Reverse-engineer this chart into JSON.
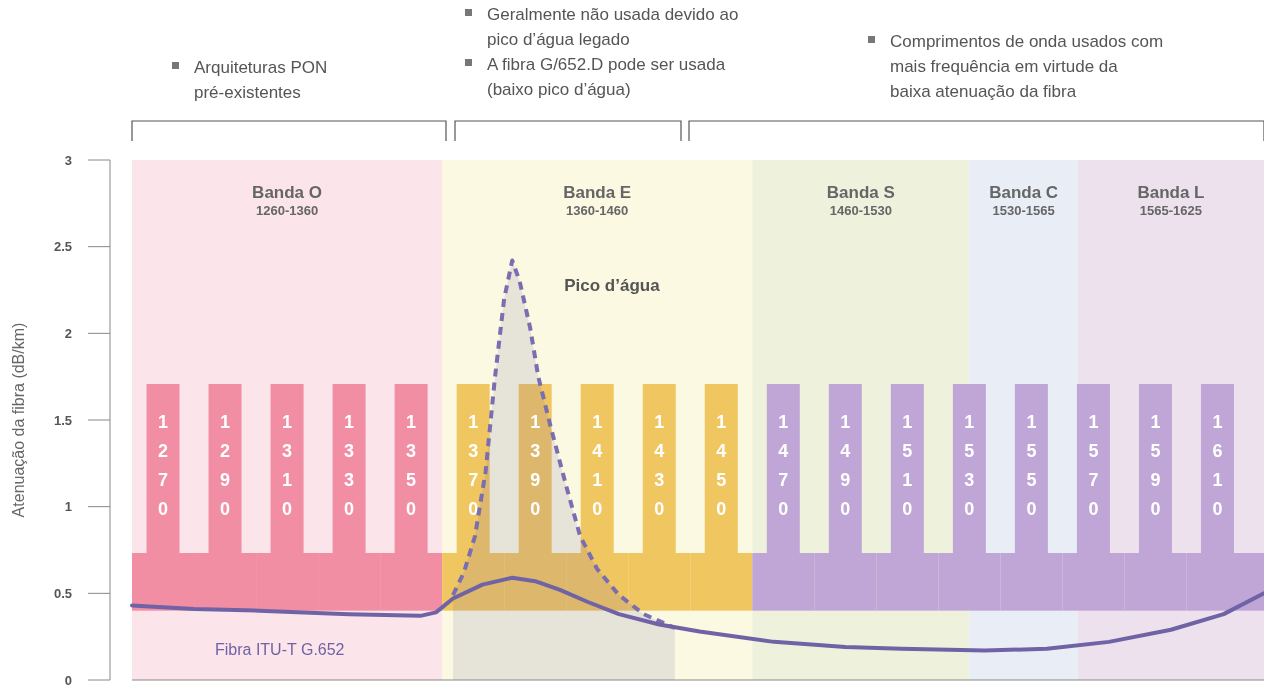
{
  "chart_data": {
    "type": "line",
    "ylabel": "Atenuação da fibra (dB/km)",
    "xlim": [
      1260,
      1625
    ],
    "ylim": [
      0,
      3
    ],
    "yticks": [
      0,
      0.5,
      1,
      1.5,
      2,
      2.5,
      3
    ],
    "xticks": [
      1270,
      1290,
      1310,
      1330,
      1350,
      1370,
      1390,
      1410,
      1430,
      1450,
      1470,
      1490,
      1510,
      1530,
      1550,
      1570,
      1590,
      1610
    ],
    "grid": false,
    "annotations": [
      "Arquiteturas PON pré-existentes",
      "Geralmente não usada devido ao pico d’água legado",
      "A fibra G/652.D pode ser usada (baixo pico d’água)",
      "Comprimentos de onda usados com mais frequência em virtude da baixa atenuação da fibra"
    ],
    "bands": [
      {
        "axis": "x",
        "from": 1260,
        "to": 1360,
        "label": "Banda O\n1260-1360",
        "color": "#fbe4ea"
      },
      {
        "axis": "x",
        "from": 1360,
        "to": 1460,
        "label": "Banda E\n1360-1460",
        "color": "#fbf9e1"
      },
      {
        "axis": "x",
        "from": 1460,
        "to": 1530,
        "label": "Banda S\n1460-1530",
        "color": "#eef2dd"
      },
      {
        "axis": "x",
        "from": 1530,
        "to": 1565,
        "label": "Banda C\n1530-1565",
        "color": "#e8edf6"
      },
      {
        "axis": "x",
        "from": 1565,
        "to": 1625,
        "label": "Banda L\n1565-1625",
        "color": "#ece1ec"
      }
    ],
    "series": [
      {
        "type": "area",
        "name": "Pico d’água",
        "color": "#7a6db0",
        "line_style": "dashed",
        "x": [
          1363.5,
          1367,
          1370.6,
          1374,
          1377,
          1380,
          1382.6,
          1385,
          1388.4,
          1391,
          1395,
          1400,
          1404.5,
          1410,
          1417,
          1425,
          1435
        ],
        "values": [
          0.49,
          0.62,
          0.83,
          1.2,
          1.74,
          2.2,
          2.42,
          2.3,
          2.03,
          1.75,
          1.46,
          1.12,
          0.83,
          0.64,
          0.49,
          0.38,
          0.3
        ]
      },
      {
        "name": "Fibra ITU-T G.652",
        "color": "#6f63a6",
        "line_style": "solid",
        "x": [
          1260,
          1280,
          1301,
          1330,
          1353,
          1358,
          1363.5,
          1373,
          1382.6,
          1390,
          1398,
          1407,
          1417,
          1430,
          1443,
          1467,
          1490,
          1508,
          1535,
          1555,
          1575,
          1595,
          1612,
          1625
        ],
        "values": [
          0.43,
          0.41,
          0.4,
          0.38,
          0.37,
          0.39,
          0.47,
          0.55,
          0.59,
          0.57,
          0.52,
          0.45,
          0.38,
          0.32,
          0.28,
          0.22,
          0.19,
          0.18,
          0.17,
          0.18,
          0.22,
          0.29,
          0.38,
          0.5
        ]
      }
    ]
  }
}
